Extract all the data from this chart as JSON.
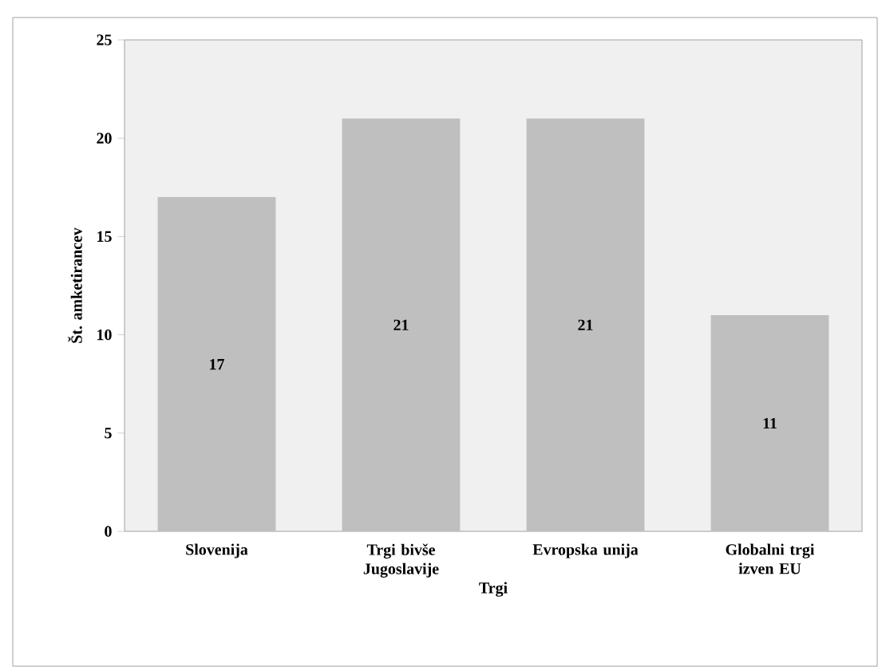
{
  "chart_data": {
    "type": "bar",
    "xlabel": "Trgi",
    "ylabel": "Št. amketirancev",
    "categories": [
      "Slovenija",
      "Trgi bivše Jugoslavije",
      "Evropska unija",
      "Globalni trgi izven EU"
    ],
    "values": [
      17,
      21,
      21,
      11
    ],
    "color": "#bfbfbf",
    "ylim": [
      0,
      25
    ],
    "yticks": [
      0,
      5,
      10,
      15,
      20,
      25
    ],
    "data_labels": true,
    "grid": false
  }
}
